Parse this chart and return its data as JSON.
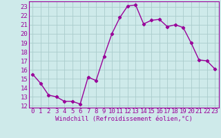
{
  "x": [
    0,
    1,
    2,
    3,
    4,
    5,
    6,
    7,
    8,
    9,
    10,
    11,
    12,
    13,
    14,
    15,
    16,
    17,
    18,
    19,
    20,
    21,
    22,
    23
  ],
  "y": [
    15.5,
    14.5,
    13.2,
    13.0,
    12.5,
    12.5,
    12.2,
    15.2,
    14.8,
    17.5,
    20.0,
    21.8,
    23.1,
    23.2,
    21.1,
    21.5,
    21.6,
    20.8,
    21.0,
    20.7,
    19.0,
    17.1,
    17.0,
    16.1
  ],
  "line_color": "#990099",
  "marker": "D",
  "marker_size": 2.2,
  "line_width": 1.0,
  "bg_color": "#ceeaea",
  "grid_color": "#aacccc",
  "xlabel": "Windchill (Refroidissement éolien,°C)",
  "xlabel_fontsize": 6.5,
  "tick_fontsize": 6.5,
  "ylim": [
    11.8,
    23.6
  ],
  "xlim": [
    -0.5,
    23.5
  ],
  "yticks": [
    12,
    13,
    14,
    15,
    16,
    17,
    18,
    19,
    20,
    21,
    22,
    23
  ],
  "xticks": [
    0,
    1,
    2,
    3,
    4,
    5,
    6,
    7,
    8,
    9,
    10,
    11,
    12,
    13,
    14,
    15,
    16,
    17,
    18,
    19,
    20,
    21,
    22,
    23
  ]
}
